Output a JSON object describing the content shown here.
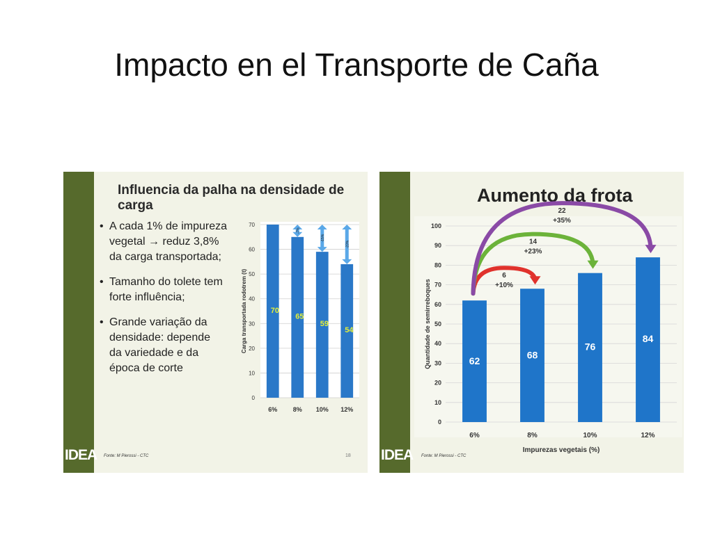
{
  "slide": {
    "title": "Impacto en el Transporte de Caña"
  },
  "left_panel": {
    "title": "Influencia da palha na densidade de carga",
    "bullets": [
      [
        "A cada 1% de impureza",
        "vegetal → reduz 3,8%",
        "da carga transportada;"
      ],
      [
        "Tamanho do tolete tem",
        "forte influência;"
      ],
      [
        "Grande variação da",
        "densidade: depende",
        "da variedade e da",
        "época de corte"
      ]
    ],
    "source": "Fonte: M Pierossi - CTC",
    "page_number": "18",
    "logo": "IDEA"
  },
  "right_panel": {
    "title": "Aumento da frota",
    "source": "Fonte: M Pierossi - CTC",
    "logo": "IDEA"
  },
  "chart_data": [
    {
      "type": "bar",
      "categories": [
        "6%",
        "8%",
        "10%",
        "12%"
      ],
      "values": [
        70,
        65,
        59,
        54
      ],
      "ylabel": "Carga transportada rodotrem (t)",
      "xlabel": "",
      "ylim": [
        0,
        70
      ],
      "yticks": [
        0,
        10,
        20,
        30,
        40,
        50,
        60,
        70
      ],
      "annotations": [
        {
          "category": "8%",
          "text": "-7%"
        },
        {
          "category": "10%",
          "text": "-15%"
        },
        {
          "category": "12%",
          "text": "-23%"
        }
      ],
      "colors": {
        "bar": "#2a78c8",
        "value_label": "#e3ee3a",
        "arrow": "#5aa8e8"
      },
      "grid": true
    },
    {
      "type": "bar",
      "categories": [
        "6%",
        "8%",
        "10%",
        "12%"
      ],
      "values": [
        62,
        68,
        76,
        84
      ],
      "ylabel": "Quantidade de semirreboques",
      "xlabel": "Impurezas vegetais (%)",
      "ylim": [
        0,
        100
      ],
      "yticks": [
        0,
        10,
        20,
        30,
        40,
        50,
        60,
        70,
        80,
        90,
        100
      ],
      "annotations": [
        {
          "from": "6%",
          "to": "8%",
          "count": "6",
          "pct": "+10%",
          "color": "#e0322c"
        },
        {
          "from": "6%",
          "to": "10%",
          "count": "14",
          "pct": "+23%",
          "color": "#6cb33a"
        },
        {
          "from": "6%",
          "to": "12%",
          "count": "22",
          "pct": "+35%",
          "color": "#8a4aa6"
        }
      ],
      "colors": {
        "bar": "#1f75c9",
        "value_label": "#ffffff"
      },
      "grid": true
    }
  ]
}
